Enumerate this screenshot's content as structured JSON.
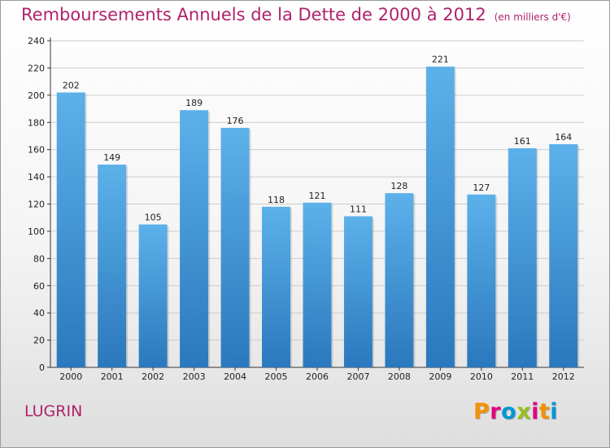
{
  "header": {
    "title": "Remboursements Annuels de la Dette de 2000 à 2012",
    "unit": "(en milliers d'€)"
  },
  "footer": {
    "commune": "LUGRIN",
    "brand": "Proxiti",
    "brand_colors": [
      "#f39200",
      "#e6007e",
      "#0096d6",
      "#95c11f",
      "#e6007e",
      "#f39200",
      "#0096d6"
    ]
  },
  "colors": {
    "title": "#b0226b",
    "bar_top": "#5db1ea",
    "bar_bottom": "#2a78bd",
    "grid": "#cccccc"
  },
  "chart_data": {
    "type": "bar",
    "title": "Remboursements Annuels de la Dette de 2000 à 2012",
    "xlabel": "",
    "ylabel": "",
    "categories": [
      "2000",
      "2001",
      "2002",
      "2003",
      "2004",
      "2005",
      "2006",
      "2007",
      "2008",
      "2009",
      "2010",
      "2011",
      "2012"
    ],
    "values": [
      202,
      149,
      105,
      189,
      176,
      118,
      121,
      111,
      128,
      221,
      127,
      161,
      164
    ],
    "ylim": [
      0,
      240
    ],
    "yticks": [
      0,
      20,
      40,
      60,
      80,
      100,
      120,
      140,
      160,
      180,
      200,
      220,
      240
    ],
    "grid": true,
    "data_labels": true
  }
}
